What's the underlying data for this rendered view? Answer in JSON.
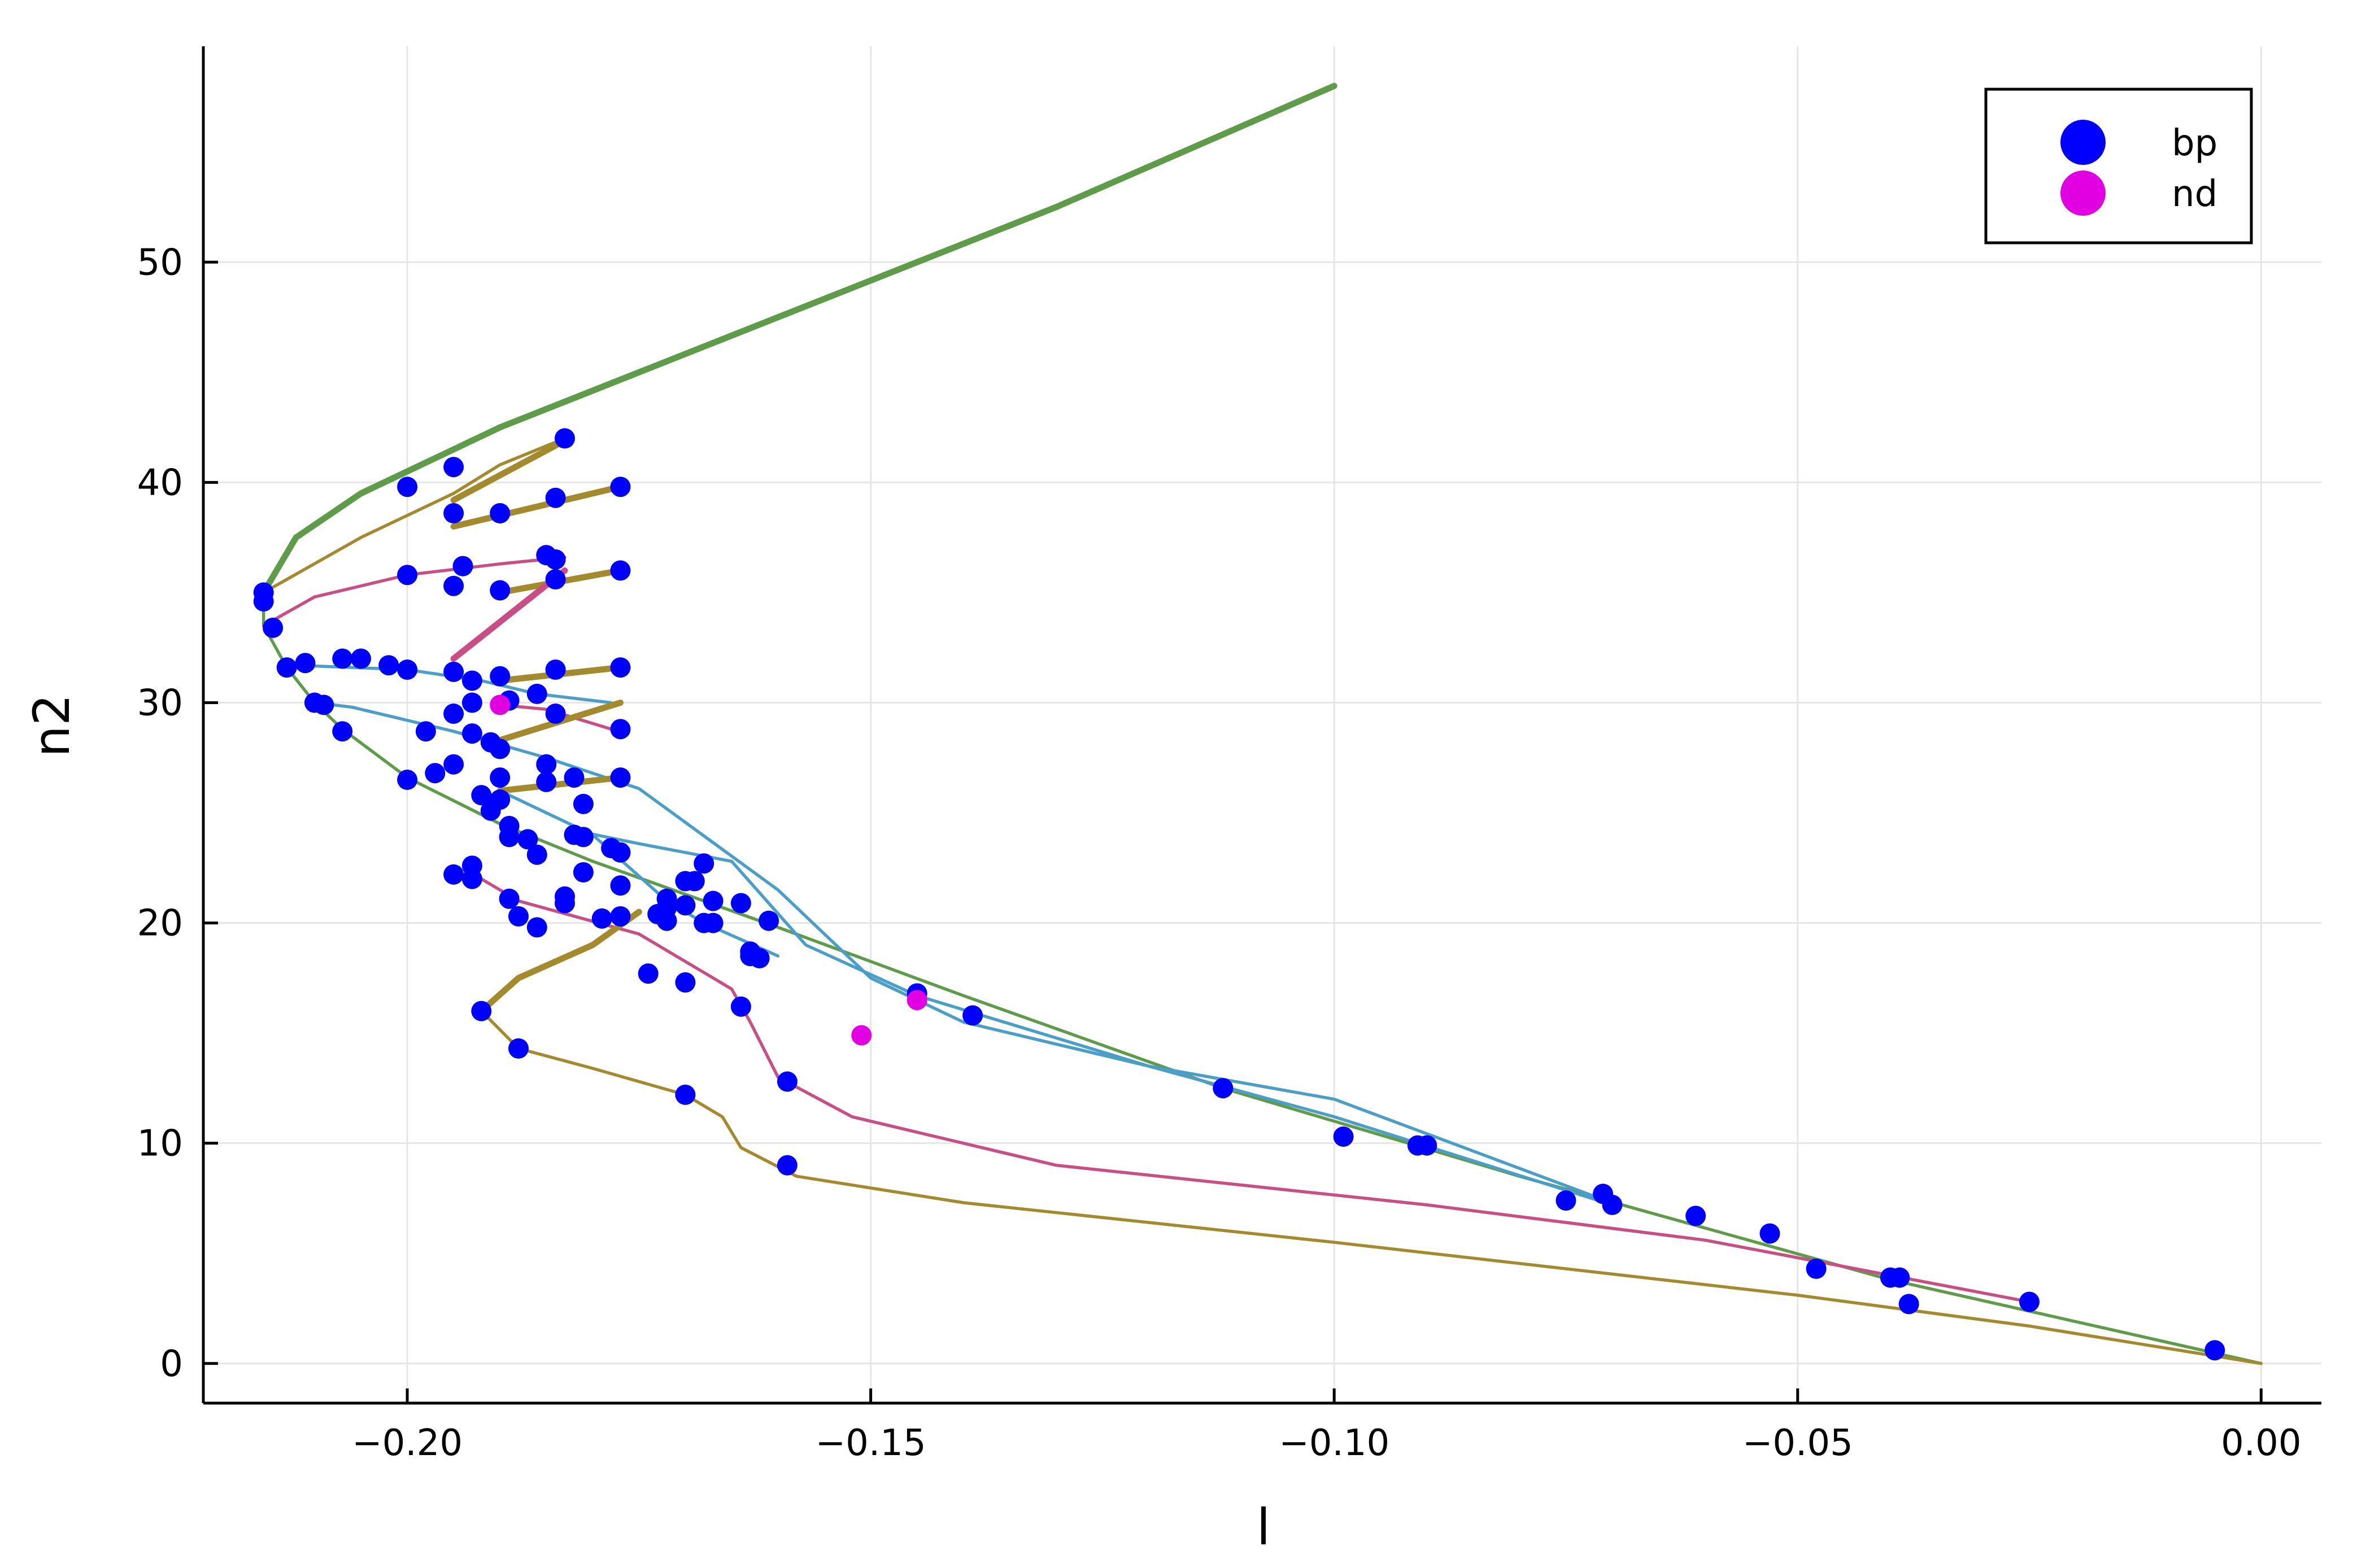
{
  "chart_data": {
    "type": "scatter",
    "title": "",
    "xlabel": "l",
    "ylabel": "n2",
    "xlim": [
      -0.222,
      0.0065
    ],
    "ylim": [
      -1.8,
      59.8
    ],
    "x_ticks": [
      -0.2,
      -0.15,
      -0.1,
      -0.05,
      0.0
    ],
    "x_tick_labels": [
      "−0.20",
      "−0.15",
      "−0.10",
      "−0.05",
      "0.00"
    ],
    "y_ticks": [
      0,
      10,
      20,
      30,
      40,
      50
    ],
    "y_tick_labels": [
      "0",
      "10",
      "20",
      "30",
      "40",
      "50"
    ],
    "grid": true,
    "legend": {
      "position": "top-right",
      "entries": [
        "bp",
        "nd"
      ]
    },
    "colors": {
      "bp": "#0000ff",
      "nd": "#e100e1"
    },
    "curves": [
      {
        "color": "#5e9c49",
        "width": 11,
        "points": [
          [
            -0.1,
            58
          ],
          [
            -0.13,
            52.5
          ],
          [
            -0.16,
            47.5
          ],
          [
            -0.19,
            42.5
          ],
          [
            -0.205,
            39.5
          ],
          [
            -0.212,
            37.5
          ],
          [
            -0.2155,
            35
          ]
        ]
      },
      {
        "color": "#5e9c49",
        "width": 5.5,
        "points": [
          [
            -0.2155,
            35
          ],
          [
            -0.2155,
            33.5
          ],
          [
            -0.213,
            31.6
          ],
          [
            -0.21,
            30
          ],
          [
            -0.207,
            28.8
          ],
          [
            -0.2,
            26.6
          ],
          [
            -0.19,
            24.5
          ],
          [
            -0.18,
            22.8
          ],
          [
            -0.17,
            21.3
          ],
          [
            -0.16,
            19.8
          ],
          [
            -0.14,
            16.7
          ],
          [
            -0.112,
            12.5
          ],
          [
            -0.08,
            8.5
          ],
          [
            -0.04,
            3.8
          ],
          [
            0.0,
            0.0
          ]
        ]
      },
      {
        "color": "#4a9fc8",
        "width": 5.5,
        "points": [
          [
            -0.21,
            30
          ],
          [
            -0.206,
            29.8
          ],
          [
            -0.195,
            28.7
          ],
          [
            -0.185,
            27.5
          ],
          [
            -0.175,
            26.1
          ],
          [
            -0.16,
            21.5
          ],
          [
            -0.15,
            17.5
          ],
          [
            -0.14,
            15.5
          ],
          [
            -0.12,
            13.5
          ],
          [
            -0.1,
            12
          ],
          [
            -0.072,
            7.6
          ]
        ]
      },
      {
        "color": "#4a9fc8",
        "width": 5.5,
        "points": [
          [
            -0.212,
            31.7
          ],
          [
            -0.2,
            31.5
          ],
          [
            -0.192,
            31
          ],
          [
            -0.186,
            30.4
          ],
          [
            -0.178,
            30
          ]
        ]
      },
      {
        "color": "#4a9fc8",
        "width": 5.5,
        "points": [
          [
            -0.182,
            24.2
          ],
          [
            -0.175,
            23.6
          ],
          [
            -0.165,
            22.8
          ],
          [
            -0.157,
            19
          ],
          [
            -0.145,
            16.7
          ],
          [
            -0.12,
            13.5
          ],
          [
            -0.1,
            11.2
          ],
          [
            -0.07,
            7.2
          ]
        ]
      },
      {
        "color": "#4a9fc8",
        "width": 5.5,
        "points": [
          [
            -0.19,
            26
          ],
          [
            -0.18,
            24
          ],
          [
            -0.172,
            21
          ],
          [
            -0.168,
            20
          ],
          [
            -0.16,
            18.5
          ]
        ]
      },
      {
        "color": "#c94e83",
        "width": 5.5,
        "points": [
          [
            -0.2155,
            33.5
          ],
          [
            -0.21,
            34.8
          ],
          [
            -0.2,
            35.8
          ],
          [
            -0.19,
            36.3
          ],
          [
            -0.183,
            36.6
          ]
        ]
      },
      {
        "color": "#c94e83",
        "width": 5.5,
        "points": [
          [
            -0.192,
            22
          ],
          [
            -0.188,
            21
          ],
          [
            -0.175,
            19.5
          ],
          [
            -0.165,
            17
          ],
          [
            -0.163,
            15.5
          ],
          [
            -0.16,
            13
          ],
          [
            -0.152,
            11.2
          ],
          [
            -0.13,
            9
          ],
          [
            -0.09,
            7.2
          ],
          [
            -0.06,
            5.6
          ],
          [
            -0.04,
            4
          ],
          [
            -0.025,
            2.8
          ]
        ]
      },
      {
        "color": "#c94e83",
        "width": 5.5,
        "points": [
          [
            -0.19,
            29.9
          ],
          [
            -0.185,
            29.7
          ],
          [
            -0.178,
            28.8
          ]
        ]
      },
      {
        "color": "#a38a2c",
        "width": 5.5,
        "points": [
          [
            -0.2155,
            35
          ],
          [
            -0.205,
            37.5
          ],
          [
            -0.195,
            39.5
          ],
          [
            -0.19,
            40.8
          ],
          [
            -0.183,
            42
          ]
        ]
      },
      {
        "color": "#a38a2c",
        "width": 5.5,
        "points": [
          [
            -0.192,
            16
          ],
          [
            -0.188,
            14.3
          ],
          [
            -0.18,
            13.4
          ],
          [
            -0.17,
            12.2
          ],
          [
            -0.166,
            11.2
          ],
          [
            -0.164,
            9.8
          ],
          [
            -0.158,
            8.5
          ],
          [
            -0.14,
            7.3
          ],
          [
            -0.1,
            5.5
          ],
          [
            -0.05,
            3.1
          ],
          [
            -0.025,
            1.7
          ],
          [
            0.0,
            0.0
          ]
        ]
      },
      {
        "color": "#a38a2c",
        "width": 11,
        "points": [
          [
            -0.195,
            39.2
          ],
          [
            -0.183,
            41.9
          ]
        ]
      },
      {
        "color": "#a38a2c",
        "width": 11,
        "points": [
          [
            -0.195,
            38
          ],
          [
            -0.177,
            39.8
          ]
        ]
      },
      {
        "color": "#a38a2c",
        "width": 11,
        "points": [
          [
            -0.19,
            35
          ],
          [
            -0.177,
            36
          ]
        ]
      },
      {
        "color": "#a38a2c",
        "width": 11,
        "points": [
          [
            -0.19,
            31
          ],
          [
            -0.177,
            31.6
          ]
        ]
      },
      {
        "color": "#a38a2c",
        "width": 11,
        "points": [
          [
            -0.19,
            28.3
          ],
          [
            -0.177,
            30
          ]
        ]
      },
      {
        "color": "#a38a2c",
        "width": 11,
        "points": [
          [
            -0.19,
            26
          ],
          [
            -0.177,
            26.6
          ]
        ]
      },
      {
        "color": "#a38a2c",
        "width": 11,
        "points": [
          [
            -0.192,
            16
          ],
          [
            -0.188,
            17.5
          ],
          [
            -0.18,
            19
          ],
          [
            -0.175,
            20.5
          ]
        ]
      },
      {
        "color": "#c94e83",
        "width": 11,
        "points": [
          [
            -0.195,
            32
          ],
          [
            -0.183,
            36
          ]
        ]
      }
    ],
    "series": [
      {
        "name": "bp",
        "color": "#0000ff",
        "points": [
          [
            -0.183,
            42
          ],
          [
            -0.195,
            40.7
          ],
          [
            -0.2,
            39.8
          ],
          [
            -0.184,
            39.3
          ],
          [
            -0.177,
            39.8
          ],
          [
            -0.195,
            38.6
          ],
          [
            -0.19,
            38.6
          ],
          [
            -0.184,
            36.5
          ],
          [
            -0.185,
            36.7
          ],
          [
            -0.194,
            36.2
          ],
          [
            -0.2,
            35.8
          ],
          [
            -0.177,
            36
          ],
          [
            -0.184,
            35.6
          ],
          [
            -0.195,
            35.3
          ],
          [
            -0.19,
            35.1
          ],
          [
            -0.2155,
            35
          ],
          [
            -0.2155,
            34.6
          ],
          [
            -0.2145,
            33.4
          ],
          [
            -0.213,
            31.6
          ],
          [
            -0.211,
            31.8
          ],
          [
            -0.207,
            32
          ],
          [
            -0.205,
            32
          ],
          [
            -0.202,
            31.7
          ],
          [
            -0.2,
            31.5
          ],
          [
            -0.195,
            31.4
          ],
          [
            -0.193,
            31
          ],
          [
            -0.19,
            31.2
          ],
          [
            -0.184,
            31.5
          ],
          [
            -0.177,
            31.6
          ],
          [
            -0.186,
            30.4
          ],
          [
            -0.189,
            30.1
          ],
          [
            -0.193,
            30
          ],
          [
            -0.21,
            30
          ],
          [
            -0.209,
            29.9
          ],
          [
            -0.195,
            29.5
          ],
          [
            -0.184,
            29.5
          ],
          [
            -0.198,
            28.7
          ],
          [
            -0.207,
            28.7
          ],
          [
            -0.193,
            28.6
          ],
          [
            -0.191,
            28.2
          ],
          [
            -0.19,
            27.9
          ],
          [
            -0.177,
            28.8
          ],
          [
            -0.185,
            27.2
          ],
          [
            -0.195,
            27.2
          ],
          [
            -0.197,
            26.8
          ],
          [
            -0.19,
            26.6
          ],
          [
            -0.2,
            26.5
          ],
          [
            -0.185,
            26.4
          ],
          [
            -0.182,
            26.6
          ],
          [
            -0.177,
            26.6
          ],
          [
            -0.192,
            25.8
          ],
          [
            -0.19,
            25.6
          ],
          [
            -0.181,
            25.4
          ],
          [
            -0.191,
            25.1
          ],
          [
            -0.189,
            24.4
          ],
          [
            -0.189,
            23.9
          ],
          [
            -0.187,
            23.8
          ],
          [
            -0.182,
            24
          ],
          [
            -0.181,
            23.9
          ],
          [
            -0.178,
            23.4
          ],
          [
            -0.177,
            23.2
          ],
          [
            -0.186,
            23.1
          ],
          [
            -0.168,
            22.7
          ],
          [
            -0.193,
            22.6
          ],
          [
            -0.195,
            22.2
          ],
          [
            -0.193,
            22
          ],
          [
            -0.181,
            22.3
          ],
          [
            -0.17,
            21.9
          ],
          [
            -0.169,
            21.9
          ],
          [
            -0.177,
            21.7
          ],
          [
            -0.189,
            21.1
          ],
          [
            -0.183,
            21.2
          ],
          [
            -0.183,
            20.9
          ],
          [
            -0.172,
            21.1
          ],
          [
            -0.167,
            21
          ],
          [
            -0.172,
            20.7
          ],
          [
            -0.17,
            20.8
          ],
          [
            -0.164,
            20.9
          ],
          [
            -0.173,
            20.4
          ],
          [
            -0.177,
            20.3
          ],
          [
            -0.179,
            20.2
          ],
          [
            -0.188,
            20.3
          ],
          [
            -0.172,
            20.1
          ],
          [
            -0.168,
            20
          ],
          [
            -0.167,
            20
          ],
          [
            -0.161,
            20.1
          ],
          [
            -0.186,
            19.8
          ],
          [
            -0.163,
            18.7
          ],
          [
            -0.162,
            18.4
          ],
          [
            -0.163,
            18.5
          ],
          [
            -0.174,
            17.7
          ],
          [
            -0.17,
            17.3
          ],
          [
            -0.145,
            16.8
          ],
          [
            -0.192,
            16
          ],
          [
            -0.164,
            16.2
          ],
          [
            -0.139,
            15.8
          ],
          [
            -0.188,
            14.3
          ],
          [
            -0.159,
            12.8
          ],
          [
            -0.112,
            12.5
          ],
          [
            -0.17,
            12.2
          ],
          [
            -0.099,
            10.3
          ],
          [
            -0.091,
            9.9
          ],
          [
            -0.09,
            9.9
          ],
          [
            -0.159,
            9
          ],
          [
            -0.071,
            7.7
          ],
          [
            -0.075,
            7.4
          ],
          [
            -0.07,
            7.2
          ],
          [
            -0.061,
            6.7
          ],
          [
            -0.053,
            5.9
          ],
          [
            -0.048,
            4.3
          ],
          [
            -0.04,
            3.9
          ],
          [
            -0.039,
            3.9
          ],
          [
            -0.038,
            2.7
          ],
          [
            -0.025,
            2.8
          ],
          [
            -0.005,
            0.6
          ]
        ]
      },
      {
        "name": "nd",
        "color": "#e100e1",
        "points": [
          [
            -0.19,
            29.9
          ],
          [
            -0.145,
            16.5
          ],
          [
            -0.151,
            14.9
          ]
        ]
      }
    ]
  }
}
